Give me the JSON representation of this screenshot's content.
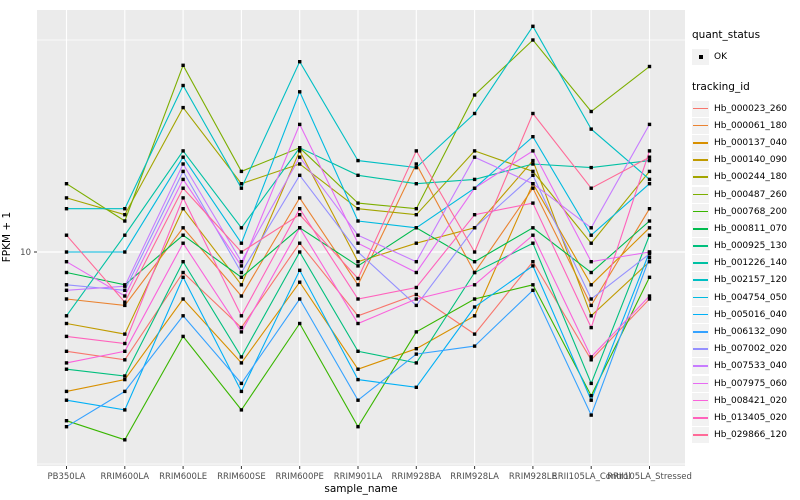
{
  "colors": {
    "panel_bg": "#EBEBEB",
    "grid": "#FFFFFF",
    "marker": "#000000",
    "tick": "#333333",
    "tick_label": "#4D4D4D",
    "legend_key_bg": "#F2F2F2"
  },
  "axes": {
    "y_title": "FPKM + 1",
    "x_title": "sample_name",
    "y_tick_label": "10"
  },
  "legend": {
    "quant_status_title": "quant_status",
    "ok_label": "OK",
    "tracking_title": "tracking_id"
  },
  "chart_data": {
    "type": "line",
    "title": "",
    "xlabel": "sample_name",
    "ylabel": "FPKM + 1",
    "y_scale": "log10",
    "ylim": [
      1,
      140
    ],
    "y_breaks_labeled": [
      10
    ],
    "y_gridlines_unlabeled": [
      1,
      100
    ],
    "grid": true,
    "legend_position": "right",
    "marker": "filled-square",
    "quant_status": "OK",
    "categories": [
      "PB350LA",
      "RRIM600LA",
      "RRIM600LE",
      "RRIM600SE",
      "RRIM600PE",
      "RRIM901LA",
      "RRIM928BA",
      "RRIM928LA",
      "RRIM928LE",
      "RRII105LA_Control",
      "RRII105LA_Stressed"
    ],
    "series": [
      {
        "name": "Hb_000023_260",
        "color": "#F8766D",
        "values": [
          3.4,
          3.1,
          8,
          4.4,
          11,
          5,
          6.3,
          4.1,
          9,
          3.1,
          6
        ]
      },
      {
        "name": "Hb_000061_180",
        "color": "#EA8331",
        "values": [
          6,
          5.6,
          13,
          6.2,
          18,
          7,
          26,
          8,
          20,
          5.6,
          16
        ]
      },
      {
        "name": "Hb_000137_040",
        "color": "#D89000",
        "values": [
          2.2,
          2.5,
          6,
          3,
          7.2,
          2.8,
          3.5,
          5,
          21,
          7,
          13
        ]
      },
      {
        "name": "Hb_000140_090",
        "color": "#C09B00",
        "values": [
          4.6,
          4.1,
          16,
          7,
          30,
          9,
          11,
          13,
          27,
          5,
          9
        ]
      },
      {
        "name": "Hb_000244_180",
        "color": "#A3A500",
        "values": [
          18,
          15,
          48,
          21,
          26,
          16,
          15,
          30,
          24,
          11,
          24
        ]
      },
      {
        "name": "Hb_000487_260",
        "color": "#7CAE00",
        "values": [
          21,
          14,
          76,
          24,
          31,
          17,
          16,
          55,
          100,
          46,
          75
        ]
      },
      {
        "name": "Hb_000768_200",
        "color": "#39B600",
        "values": [
          1.6,
          1.3,
          4,
          1.8,
          4.6,
          1.5,
          4.2,
          6,
          7,
          2.1,
          7.6
        ]
      },
      {
        "name": "Hb_000811_070",
        "color": "#00BB4E",
        "values": [
          8,
          7,
          12,
          7.6,
          13,
          8.6,
          13,
          9,
          13,
          8,
          14
        ]
      },
      {
        "name": "Hb_000925_130",
        "color": "#00BF7D",
        "values": [
          2.8,
          2.6,
          9,
          3.2,
          10,
          3.4,
          3,
          8,
          11,
          2.4,
          12
        ]
      },
      {
        "name": "Hb_001226_140",
        "color": "#00C1A3",
        "values": [
          5,
          12,
          30,
          13,
          31,
          23,
          21,
          22,
          26,
          25,
          27
        ]
      },
      {
        "name": "Hb_002157_120",
        "color": "#00BFC4",
        "values": [
          16,
          16,
          61,
          20,
          79,
          27,
          25,
          45,
          116,
          38,
          22
        ]
      },
      {
        "name": "Hb_004754_050",
        "color": "#00BAE0",
        "values": [
          10,
          10,
          28,
          11,
          57,
          14,
          13,
          20,
          35,
          12,
          21
        ]
      },
      {
        "name": "Hb_005016_040",
        "color": "#00B0F6",
        "values": [
          2,
          1.8,
          7.6,
          2.2,
          8.2,
          2.5,
          2.3,
          5.5,
          8.6,
          2,
          10
        ]
      },
      {
        "name": "Hb_006132_090",
        "color": "#35A2FF",
        "values": [
          1.5,
          2.2,
          5,
          2.4,
          6,
          2,
          3.3,
          3.6,
          6.6,
          1.7,
          9.4
        ]
      },
      {
        "name": "Hb_007002_020",
        "color": "#9590FF",
        "values": [
          7,
          6.6,
          24,
          8,
          23,
          10,
          5.6,
          13,
          23,
          6,
          9.8
        ]
      },
      {
        "name": "Hb_007533_040",
        "color": "#C77CFF",
        "values": [
          6.6,
          6.9,
          26,
          9,
          28,
          12,
          9,
          28,
          21,
          13,
          40
        ]
      },
      {
        "name": "Hb_007975_060",
        "color": "#E76BF3",
        "values": [
          9,
          6.2,
          22,
          8.6,
          40,
          11,
          8,
          20,
          30,
          9,
          10
        ]
      },
      {
        "name": "Hb_008421_020",
        "color": "#FA62DB",
        "values": [
          3,
          3.4,
          11,
          4.2,
          13,
          4.6,
          6,
          7,
          12,
          3.2,
          6.2
        ]
      },
      {
        "name": "Hb_013405_020",
        "color": "#FF62BC",
        "values": [
          4,
          3.7,
          18,
          5,
          16,
          6,
          6.8,
          15,
          17,
          4.4,
          30
        ]
      },
      {
        "name": "Hb_029866_120",
        "color": "#FF6A98",
        "values": [
          12,
          5.8,
          20,
          10,
          15,
          7.5,
          30,
          10,
          45,
          20,
          28
        ]
      }
    ]
  }
}
